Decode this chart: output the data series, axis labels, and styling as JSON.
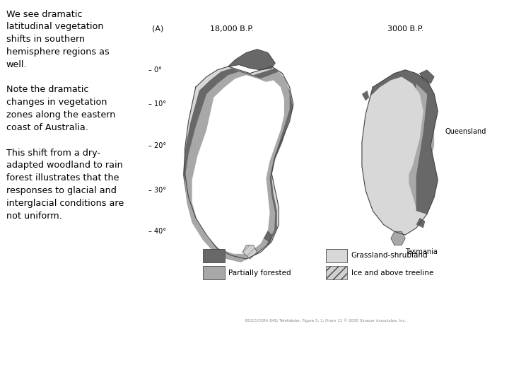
{
  "background_color": "#ffffff",
  "left_text_lines": [
    "We see dramatic",
    "latitudinal vegetation",
    "shifts in southern",
    "hemisphere regions as",
    "well.",
    "",
    "Note the dramatic",
    "changes in vegetation",
    "zones along the eastern",
    "coast of Australia.",
    "",
    "This shift from a dry-",
    "adapted woodland to rain",
    "forest illustrates that the",
    "responses to glacial and",
    "interglacial conditions are",
    "not uniform."
  ],
  "c_forest": "#686868",
  "c_partial": "#a8a8a8",
  "c_grass": "#d8d8d8",
  "c_ice": "#d0d0d0",
  "c_outline": "#444444",
  "c_white": "#ffffff",
  "label_A": "(A)",
  "label_18000": "18,000 B.P.",
  "label_3000": "3000 B.P.",
  "queensland_label": "Queensland",
  "tasmania_label": "Tasmania",
  "citation": "BCGC/CGRA 848; Telefabder, Figure 5. 1; [from 11 © 2000 Sinauer Associates, Inc.",
  "font_family": "DejaVu Sans"
}
